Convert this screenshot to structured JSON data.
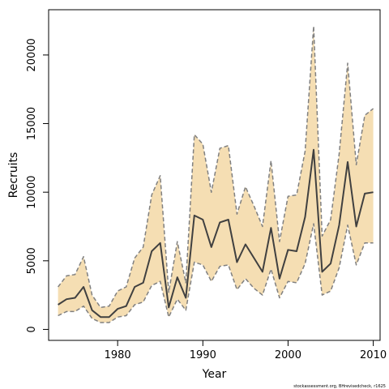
{
  "chart_data": {
    "type": "area",
    "xlabel": "Year",
    "ylabel": "Recruits",
    "xlim": [
      1971.9,
      2010.8
    ],
    "ylim": [
      -800,
      23300
    ],
    "xticks": [
      "1980",
      "1990",
      "2000",
      "2010"
    ],
    "yticks": [
      "0",
      "5000",
      "10000",
      "15000",
      "20000"
    ],
    "x": [
      1973,
      1974,
      1975,
      1976,
      1977,
      1978,
      1979,
      1980,
      1981,
      1982,
      1983,
      1984,
      1985,
      1986,
      1987,
      1988,
      1989,
      1990,
      1991,
      1992,
      1993,
      1994,
      1995,
      1996,
      1997,
      1998,
      1999,
      2000,
      2001,
      2002,
      2003,
      2004,
      2005,
      2006,
      2007,
      2008,
      2009,
      2010
    ],
    "series": [
      {
        "role": "estimate",
        "values": [
          1800,
          2200,
          2300,
          3100,
          1400,
          900,
          900,
          1500,
          1700,
          3100,
          3400,
          5700,
          6300,
          1600,
          3800,
          2300,
          8300,
          8000,
          6000,
          7800,
          8000,
          4900,
          6200,
          5200,
          4200,
          7400,
          3700,
          5800,
          5700,
          8200,
          13100,
          4200,
          4800,
          7600,
          12200,
          7500,
          9900,
          10000
        ]
      },
      {
        "role": "upper",
        "values": [
          3100,
          3900,
          4000,
          5300,
          2500,
          1600,
          1700,
          2800,
          3100,
          5200,
          6000,
          9800,
          11200,
          2700,
          6400,
          3400,
          14200,
          13500,
          10000,
          13200,
          13400,
          8400,
          10400,
          9000,
          7500,
          12300,
          6400,
          9700,
          9800,
          13000,
          22100,
          6800,
          8000,
          12800,
          19400,
          12000,
          15600,
          16100
        ]
      },
      {
        "role": "lower",
        "values": [
          1000,
          1300,
          1300,
          1700,
          800,
          500,
          500,
          900,
          1000,
          1800,
          2000,
          3200,
          3500,
          900,
          2200,
          1400,
          4900,
          4700,
          3500,
          4600,
          4700,
          2900,
          3700,
          3000,
          2500,
          4400,
          2300,
          3500,
          3400,
          4800,
          7700,
          2500,
          2800,
          4500,
          7600,
          4700,
          6300,
          6300
        ]
      }
    ],
    "colors": {
      "band": "#f5deb3",
      "bounds": "#808080",
      "line": "#404040"
    },
    "footnote": "stockassessment.org, BHrevisedcheck, r1625"
  }
}
